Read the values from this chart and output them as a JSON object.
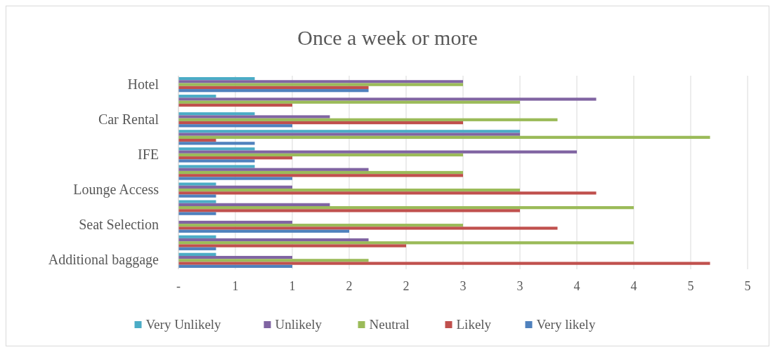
{
  "chart_data": {
    "type": "bar",
    "orientation": "horizontal",
    "title": "Once a week or more",
    "categories": [
      "Hotel",
      null,
      "Car Rental",
      null,
      "IFE",
      null,
      "Lounge Access",
      null,
      "Seat Selection",
      null,
      "Additional baggage"
    ],
    "series": [
      {
        "name": "Very Unlikely",
        "color": "#4bacc6",
        "values": [
          0.67,
          0.33,
          0.67,
          3.0,
          0.67,
          0.67,
          0.33,
          0.33,
          0,
          0.33,
          0.33
        ]
      },
      {
        "name": "Unlikely",
        "color": "#8064a2",
        "values": [
          2.5,
          3.67,
          1.33,
          3.0,
          3.5,
          1.67,
          1.0,
          1.33,
          1.0,
          1.67,
          1.0
        ]
      },
      {
        "name": "Neutral",
        "color": "#9bbb59",
        "values": [
          2.5,
          3.0,
          3.33,
          4.67,
          2.5,
          2.5,
          3.0,
          4.0,
          2.5,
          4.0,
          1.67
        ]
      },
      {
        "name": "Likely",
        "color": "#c0504d",
        "values": [
          1.67,
          1.0,
          2.5,
          0.33,
          1.0,
          2.5,
          3.67,
          3.0,
          3.33,
          2.0,
          4.67
        ]
      },
      {
        "name": "Very likely",
        "color": "#4f81bd",
        "values": [
          1.67,
          0,
          1.0,
          0.67,
          0.67,
          1.0,
          0.33,
          0.33,
          1.5,
          0.33,
          1.0
        ]
      }
    ],
    "xlim": [
      0,
      5
    ],
    "xticks": [
      {
        "value": 0,
        "label": "-"
      },
      {
        "value": 0.5,
        "label": "1"
      },
      1,
      {
        "value": 1.5,
        "label": "2"
      },
      2,
      {
        "value": 2.5,
        "label": "3"
      },
      3,
      {
        "value": 3.5,
        "label": "4"
      },
      4,
      {
        "value": 4.5,
        "label": "5"
      },
      5
    ],
    "grid": "x",
    "legend": "bottom"
  }
}
